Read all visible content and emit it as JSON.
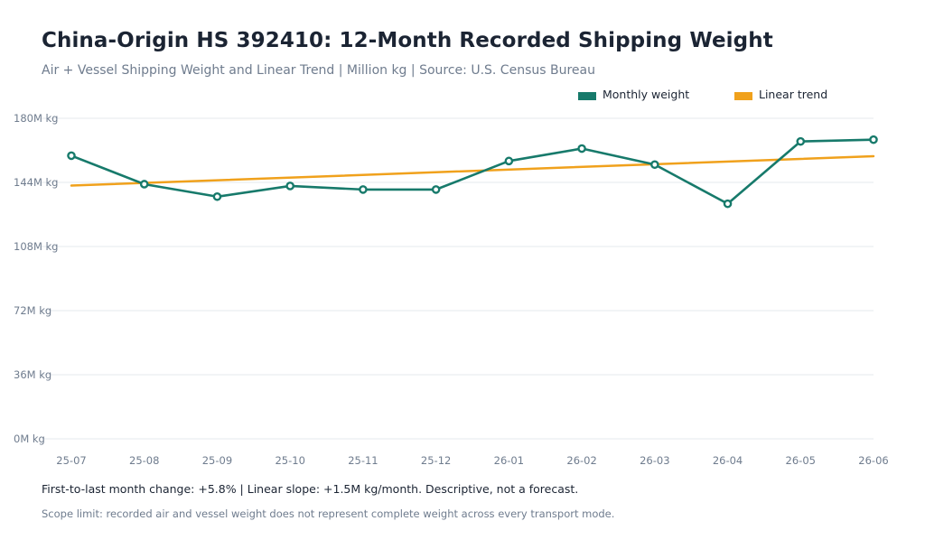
{
  "header": {
    "title": "China-Origin HS 392410: 12-Month Recorded Shipping Weight",
    "subtitle": "Air + Vessel Shipping Weight and Linear Trend | Million kg | Source: U.S. Census Bureau"
  },
  "legend": {
    "monthly_label": "Monthly weight",
    "trend_label": "Linear trend"
  },
  "colors": {
    "monthly": "#177a6b",
    "trend": "#f0a11c",
    "grid": "#e4e8ee"
  },
  "chart_data": {
    "type": "line",
    "x": [
      "25-07",
      "25-08",
      "25-09",
      "25-10",
      "25-11",
      "25-12",
      "26-01",
      "26-02",
      "26-03",
      "26-04",
      "26-05",
      "26-06"
    ],
    "y_ticks": [
      "0M kg",
      "36M kg",
      "72M kg",
      "108M kg",
      "144M kg",
      "180M kg"
    ],
    "ylim": [
      0,
      180
    ],
    "grid": true,
    "legend_position": "top-right",
    "series": [
      {
        "name": "Monthly weight",
        "values": [
          159,
          143,
          136,
          142,
          140,
          140,
          156,
          163,
          154,
          132,
          167,
          168
        ],
        "markers": true
      },
      {
        "name": "Linear trend",
        "start": 142.2,
        "end": 158.7,
        "markers": false
      }
    ]
  },
  "footer": {
    "note": "First-to-last month change: +5.8% | Linear slope: +1.5M kg/month. Descriptive, not a forecast.",
    "scope": "Scope limit: recorded air and vessel weight does not represent complete weight across every transport mode."
  }
}
